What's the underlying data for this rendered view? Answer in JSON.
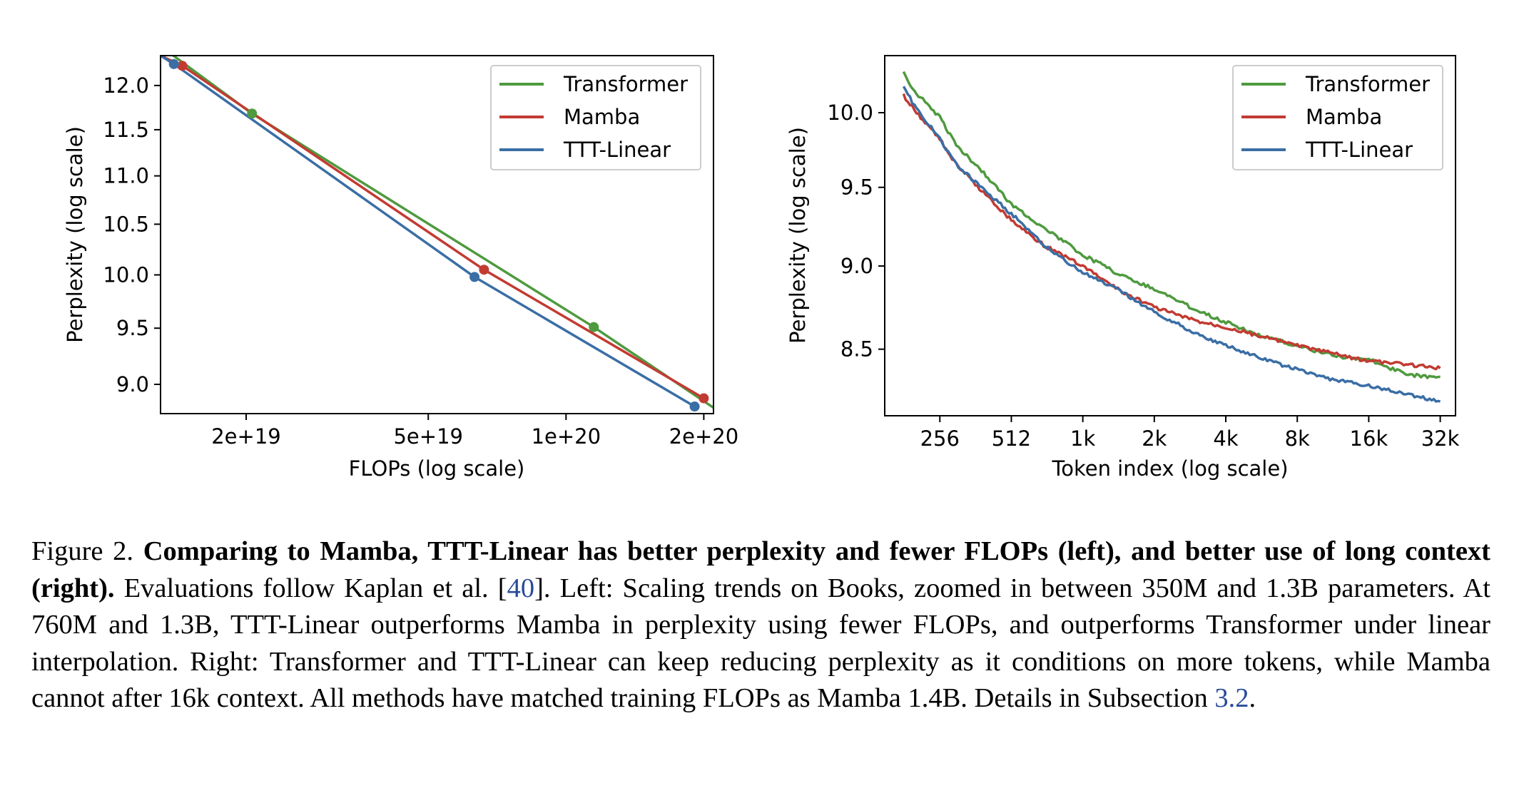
{
  "chart_data": [
    {
      "type": "line",
      "xlabel": "FLOPs (log scale)",
      "ylabel": "Perplexity (log scale)",
      "x_scale": "log",
      "y_scale": "log",
      "xlim": [
        1.3e+19,
        2.1e+20
      ],
      "ylim": [
        8.75,
        12.35
      ],
      "x_ticks": [
        {
          "value": 2e+19,
          "label": "2e+19"
        },
        {
          "value": 5e+19,
          "label": "5e+19"
        },
        {
          "value": 1e+20,
          "label": "1e+20"
        },
        {
          "value": 2e+20,
          "label": "2e+20"
        }
      ],
      "y_ticks": [
        {
          "value": 9.0,
          "label": "9.0"
        },
        {
          "value": 9.5,
          "label": "9.5"
        },
        {
          "value": 10.0,
          "label": "10.0"
        },
        {
          "value": 10.5,
          "label": "10.5"
        },
        {
          "value": 11.0,
          "label": "11.0"
        },
        {
          "value": 11.5,
          "label": "11.5"
        },
        {
          "value": 12.0,
          "label": "12.0"
        }
      ],
      "legend_position": "upper right",
      "series": [
        {
          "name": "Transformer",
          "color": "#4f9a3f",
          "x": [
            1.31e+19,
            2.06e+19,
            1.15e+20,
            2.1e+20
          ],
          "y": [
            12.45,
            11.68,
            9.51,
            8.8
          ],
          "points_x": [
            2.06e+19,
            1.15e+20
          ],
          "points_y": [
            11.68,
            9.51
          ]
        },
        {
          "name": "Mamba",
          "color": "#c23b32",
          "x": [
            1.3e+19,
            1.45e+19,
            6.62e+19,
            2e+20
          ],
          "y": [
            12.35,
            12.23,
            10.05,
            8.88
          ],
          "points_x": [
            1.45e+19,
            6.62e+19,
            2e+20
          ],
          "points_y": [
            12.23,
            10.05,
            8.88
          ]
        },
        {
          "name": "TTT-Linear",
          "color": "#3a6ea5",
          "x": [
            1.3e+19,
            1.39e+19,
            6.31e+19,
            1.91e+20
          ],
          "y": [
            12.35,
            12.25,
            9.98,
            8.81
          ],
          "points_x": [
            1.39e+19,
            6.31e+19,
            1.91e+20
          ],
          "points_y": [
            12.25,
            9.98,
            8.81
          ]
        }
      ]
    },
    {
      "type": "line",
      "xlabel": "Token index (log scale)",
      "ylabel": "Perplexity (log scale)",
      "x_scale": "log",
      "y_scale": "log",
      "xlim": [
        150,
        38000
      ],
      "ylim": [
        8.12,
        10.4
      ],
      "x_ticks": [
        {
          "value": 256,
          "label": "256"
        },
        {
          "value": 512,
          "label": "512"
        },
        {
          "value": 1024,
          "label": "1k"
        },
        {
          "value": 2048,
          "label": "2k"
        },
        {
          "value": 4096,
          "label": "4k"
        },
        {
          "value": 8192,
          "label": "8k"
        },
        {
          "value": 16384,
          "label": "16k"
        },
        {
          "value": 32768,
          "label": "32k"
        }
      ],
      "y_ticks": [
        {
          "value": 8.5,
          "label": "8.5"
        },
        {
          "value": 9.0,
          "label": "9.0"
        },
        {
          "value": 9.5,
          "label": "9.5"
        },
        {
          "value": 10.0,
          "label": "10.0"
        }
      ],
      "legend_position": "upper right",
      "series": [
        {
          "name": "Transformer",
          "color": "#4f9a3f",
          "x": [
            180,
            200,
            256,
            300,
            400,
            512,
            700,
            1024,
            1500,
            2048,
            3000,
            4096,
            6000,
            8192,
            12000,
            16384,
            24000,
            32768
          ],
          "y": [
            10.28,
            10.15,
            9.97,
            9.78,
            9.58,
            9.39,
            9.24,
            9.07,
            8.94,
            8.86,
            8.74,
            8.66,
            8.57,
            8.52,
            8.46,
            8.44,
            8.35,
            8.34
          ]
        },
        {
          "name": "Mamba",
          "color": "#c23b32",
          "x": [
            180,
            200,
            256,
            300,
            400,
            512,
            700,
            1024,
            1500,
            2048,
            3000,
            4096,
            6000,
            8192,
            12000,
            16384,
            24000,
            32768
          ],
          "y": [
            10.12,
            10.02,
            9.82,
            9.65,
            9.45,
            9.29,
            9.13,
            9.0,
            8.84,
            8.75,
            8.67,
            8.63,
            8.57,
            8.52,
            8.47,
            8.43,
            8.41,
            8.39
          ]
        },
        {
          "name": "TTT-Linear",
          "color": "#3a6ea5",
          "x": [
            180,
            200,
            256,
            300,
            400,
            512,
            700,
            1024,
            1500,
            2048,
            3000,
            4096,
            6000,
            8192,
            12000,
            16384,
            24000,
            32768
          ],
          "y": [
            10.18,
            10.05,
            9.82,
            9.65,
            9.47,
            9.33,
            9.13,
            8.96,
            8.84,
            8.72,
            8.6,
            8.52,
            8.44,
            8.38,
            8.32,
            8.29,
            8.24,
            8.2
          ]
        }
      ]
    }
  ],
  "caption": {
    "figure_label": "Figure 2.",
    "bold_text": "Comparing to Mamba, TTT-Linear has better perplexity and fewer FLOPs (left), and better use of long context (right).",
    "text_before_ref": "Evaluations follow Kaplan et al. [",
    "ref_citation": "40",
    "text_after_ref": "]. Left: Scaling trends on Books, zoomed in between 350M and 1.3B parameters. At 760M and 1.3B, TTT-Linear outperforms Mamba in perplexity using fewer FLOPs, and outperforms Transformer under linear interpolation. Right: Transformer and TTT-Linear can keep reducing perplexity as it conditions on more tokens, while Mamba cannot after 16k context. All methods have matched training FLOPs as Mamba 1.4B. Details in Subsection ",
    "ref_subsection": "3.2",
    "text_end": "."
  }
}
